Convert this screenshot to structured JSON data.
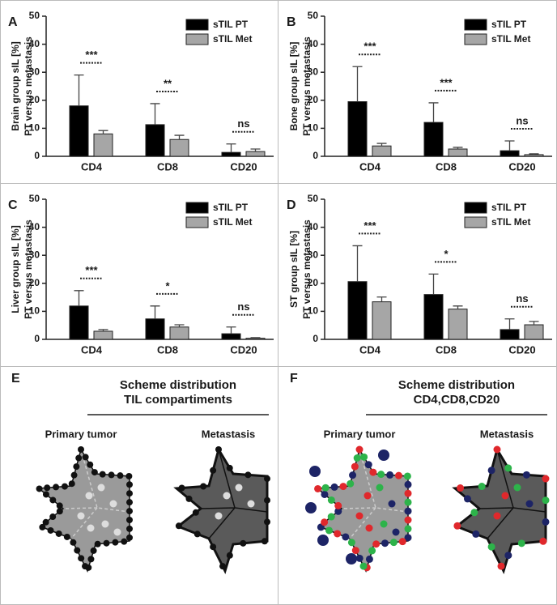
{
  "chart_data": [
    {
      "type": "bar",
      "panel": "A",
      "ylabel": [
        "Brain group sIL [%]",
        "PT versus metastasis"
      ],
      "categories": [
        "CD4",
        "CD8",
        "CD20"
      ],
      "series": [
        {
          "name": "sTIL PT",
          "color": "#000000",
          "values": [
            18,
            11.3,
            1.4
          ],
          "errors": [
            11,
            7.5,
            3
          ]
        },
        {
          "name": "sTIL Met",
          "color": "#a6a6a6",
          "values": [
            8,
            6,
            1.7
          ],
          "errors": [
            1.2,
            1.5,
            0.9
          ]
        }
      ],
      "annotations": [
        "***",
        "**",
        "ns"
      ],
      "ylim": [
        0,
        50
      ],
      "yticks": [
        0,
        10,
        20,
        30,
        40,
        50
      ]
    },
    {
      "type": "bar",
      "panel": "B",
      "ylabel": [
        "Bone group sIL [%]",
        "PT versus metastasis"
      ],
      "categories": [
        "CD4",
        "CD8",
        "CD20"
      ],
      "series": [
        {
          "name": "sTIL PT",
          "color": "#000000",
          "values": [
            19.5,
            12.1,
            2
          ],
          "errors": [
            12.5,
            7,
            3.5
          ]
        },
        {
          "name": "sTIL Met",
          "color": "#a6a6a6",
          "values": [
            3.7,
            2.6,
            0.6
          ],
          "errors": [
            0.9,
            0.6,
            0.3
          ]
        }
      ],
      "annotations": [
        "***",
        "***",
        "ns"
      ],
      "ylim": [
        0,
        50
      ],
      "yticks": [
        0,
        10,
        20,
        30,
        40,
        50
      ]
    },
    {
      "type": "bar",
      "panel": "C",
      "ylabel": [
        "Liver group sIL [%]",
        "PT versus metastasis"
      ],
      "categories": [
        "CD4",
        "CD8",
        "CD20"
      ],
      "series": [
        {
          "name": "sTIL PT",
          "color": "#000000",
          "values": [
            11.9,
            7.3,
            2
          ],
          "errors": [
            5.5,
            4.6,
            2.4
          ]
        },
        {
          "name": "sTIL Met",
          "color": "#a6a6a6",
          "values": [
            2.9,
            4.4,
            0.4
          ],
          "errors": [
            0.6,
            0.8,
            0.2
          ]
        }
      ],
      "annotations": [
        "***",
        "*",
        "ns"
      ],
      "ylim": [
        0,
        50
      ],
      "yticks": [
        0,
        10,
        20,
        30,
        40,
        50
      ]
    },
    {
      "type": "bar",
      "panel": "D",
      "ylabel": [
        "ST group  sIL [%]",
        "PT versus metastasis"
      ],
      "categories": [
        "CD4",
        "CD8",
        "CD20"
      ],
      "series": [
        {
          "name": "sTIL PT",
          "color": "#000000",
          "values": [
            20.6,
            16,
            3.5
          ],
          "errors": [
            12.8,
            7.3,
            3.8
          ]
        },
        {
          "name": "sTIL Met",
          "color": "#a6a6a6",
          "values": [
            13.4,
            10.8,
            5.2
          ],
          "errors": [
            1.7,
            1.1,
            1.2
          ]
        }
      ],
      "annotations": [
        "***",
        "*",
        "ns"
      ],
      "ylim": [
        0,
        50
      ],
      "yticks": [
        0,
        10,
        20,
        30,
        40,
        50
      ]
    }
  ],
  "panels": [
    {
      "label": "E",
      "title": [
        "Scheme distribution",
        "TIL compartiments"
      ],
      "left": "Primary tumor",
      "right": "Metastasis"
    },
    {
      "label": "F",
      "title": [
        "Scheme distribution",
        "CD4,CD8,CD20"
      ],
      "left": "Primary tumor",
      "right": "Metastasis"
    }
  ]
}
